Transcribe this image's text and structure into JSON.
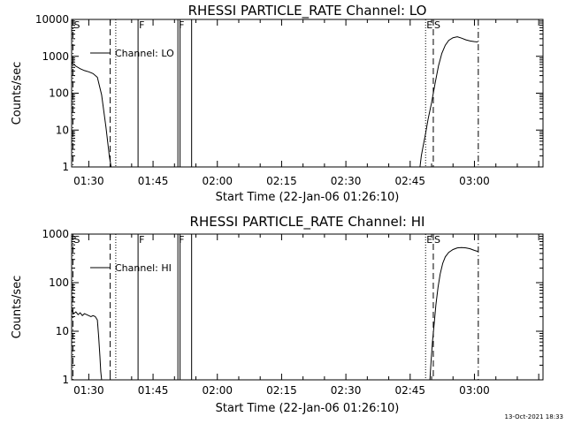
{
  "timestamp": "13-Oct-2021 18:33",
  "chart_data": [
    {
      "type": "line",
      "title": "RHESSI PARTICLE_RATE Channel: LO",
      "ylabel": "Counts/sec",
      "xlabel": "Start Time (22-Jan-06 01:26:10)",
      "yscale": "log",
      "ylim": [
        1,
        10000
      ],
      "xlim_min": [
        86,
        196
      ],
      "xticks": [
        {
          "min": 90,
          "label": "01:30"
        },
        {
          "min": 105,
          "label": "01:45"
        },
        {
          "min": 120,
          "label": "02:00"
        },
        {
          "min": 135,
          "label": "02:15"
        },
        {
          "min": 150,
          "label": "02:30"
        },
        {
          "min": 165,
          "label": "02:45"
        },
        {
          "min": 180,
          "label": "03:00"
        }
      ],
      "yticks": [
        {
          "value": 1,
          "label": "1"
        },
        {
          "value": 10,
          "label": "10"
        },
        {
          "value": 100,
          "label": "100"
        },
        {
          "value": 1000,
          "label": "1000"
        },
        {
          "value": 10000,
          "label": "10000"
        }
      ],
      "legend": {
        "position": "top-left",
        "label": "Channel: LO"
      },
      "events": [
        {
          "min": 86.3,
          "style": "dashdot",
          "label": "S"
        },
        {
          "min": 95.0,
          "style": "dashed",
          "label": ""
        },
        {
          "min": 96.3,
          "style": "dotted",
          "label": ""
        },
        {
          "min": 101.5,
          "style": "solid",
          "label": "F"
        },
        {
          "min": 110.8,
          "style": "solid",
          "label": "F"
        },
        {
          "min": 111.3,
          "style": "solid",
          "label": ""
        },
        {
          "min": 114.0,
          "style": "solid",
          "label": ""
        },
        {
          "min": 168.6,
          "style": "dotted",
          "label": "E"
        },
        {
          "min": 170.4,
          "style": "dashed",
          "label": "S"
        },
        {
          "min": 180.9,
          "style": "dashdot",
          "label": ""
        }
      ],
      "segments": [
        {
          "x": [
            86,
            87,
            88,
            89,
            90,
            91,
            92,
            93,
            94,
            94.8,
            95.2
          ],
          "y": [
            680,
            540,
            460,
            410,
            380,
            340,
            270,
            90,
            12,
            2,
            1
          ]
        },
        {
          "x": [
            167.3,
            167.6,
            168.0,
            168.6,
            169.2,
            170.0,
            170.8,
            171.6,
            172.4,
            173.2,
            174.0,
            175.0,
            176.0,
            177.0,
            178.0,
            179.0,
            180.0,
            180.8
          ],
          "y": [
            1,
            2,
            3.5,
            8,
            20,
            55,
            180,
            550,
            1200,
            2000,
            2700,
            3200,
            3400,
            3100,
            2800,
            2600,
            2500,
            2450
          ]
        }
      ]
    },
    {
      "type": "line",
      "title": "RHESSI PARTICLE_RATE Channel: HI",
      "ylabel": "Counts/sec",
      "xlabel": "Start Time (22-Jan-06 01:26:10)",
      "yscale": "log",
      "ylim": [
        1,
        1000
      ],
      "xlim_min": [
        86,
        196
      ],
      "xticks": [
        {
          "min": 90,
          "label": "01:30"
        },
        {
          "min": 105,
          "label": "01:45"
        },
        {
          "min": 120,
          "label": "02:00"
        },
        {
          "min": 135,
          "label": "02:15"
        },
        {
          "min": 150,
          "label": "02:30"
        },
        {
          "min": 165,
          "label": "02:45"
        },
        {
          "min": 180,
          "label": "03:00"
        }
      ],
      "yticks": [
        {
          "value": 1,
          "label": "1"
        },
        {
          "value": 10,
          "label": "10"
        },
        {
          "value": 100,
          "label": "100"
        },
        {
          "value": 1000,
          "label": "1000"
        }
      ],
      "legend": {
        "position": "top-left",
        "label": "Channel: HI"
      },
      "events": [
        {
          "min": 86.3,
          "style": "dashdot",
          "label": "S"
        },
        {
          "min": 95.0,
          "style": "dashed",
          "label": ""
        },
        {
          "min": 96.3,
          "style": "dotted",
          "label": ""
        },
        {
          "min": 101.5,
          "style": "solid",
          "label": "F"
        },
        {
          "min": 110.8,
          "style": "solid",
          "label": "F"
        },
        {
          "min": 111.3,
          "style": "solid",
          "label": ""
        },
        {
          "min": 114.0,
          "style": "solid",
          "label": ""
        },
        {
          "min": 168.6,
          "style": "dotted",
          "label": "E"
        },
        {
          "min": 170.4,
          "style": "dashed",
          "label": "S"
        },
        {
          "min": 180.9,
          "style": "dashdot",
          "label": ""
        }
      ],
      "segments": [
        {
          "x": [
            86,
            86.5,
            87,
            87.5,
            88,
            88.5,
            89,
            89.5,
            90,
            90.5,
            91,
            91.5,
            92,
            92.3,
            92.6,
            92.8,
            93.0
          ],
          "y": [
            28,
            23,
            25,
            22,
            24,
            21,
            23,
            22,
            21,
            20,
            21,
            20,
            17,
            8,
            3,
            1.5,
            1
          ]
        },
        {
          "x": [
            169.6,
            169.9,
            170.2,
            170.6,
            171.0,
            171.5,
            172.0,
            172.6,
            173.2,
            174.0,
            175.0,
            176.0,
            177.0,
            178.0,
            179.0,
            180.0,
            180.8
          ],
          "y": [
            1,
            2.5,
            6,
            14,
            35,
            80,
            150,
            250,
            340,
            420,
            480,
            520,
            530,
            520,
            500,
            460,
            440
          ]
        }
      ]
    }
  ]
}
